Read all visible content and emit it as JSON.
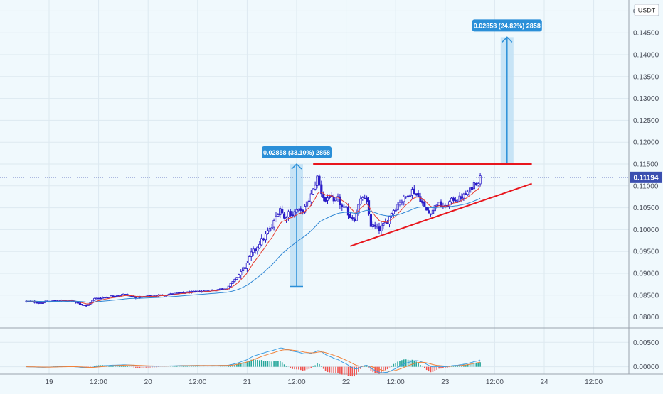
{
  "chart_data": {
    "type": "candlestick",
    "currency": "USDT",
    "current_price": "0.11194",
    "y_ticks": [
      "0.15000",
      "0.14500",
      "0.14000",
      "0.13500",
      "0.13000",
      "0.12500",
      "0.12000",
      "0.11500",
      "0.11000",
      "0.10500",
      "0.10000",
      "0.09500",
      "0.09000",
      "0.08500",
      "0.08000"
    ],
    "ylim": [
      0.0775,
      0.1525
    ],
    "x_ticks": [
      {
        "label": "19",
        "t": 0
      },
      {
        "label": "12:00",
        "t": 12
      },
      {
        "label": "20",
        "t": 24
      },
      {
        "label": "12:00",
        "t": 36
      },
      {
        "label": "21",
        "t": 48
      },
      {
        "label": "12:00",
        "t": 60
      },
      {
        "label": "22",
        "t": 72
      },
      {
        "label": "12:00",
        "t": 84
      },
      {
        "label": "23",
        "t": 96
      },
      {
        "label": "12:00",
        "t": 108
      },
      {
        "label": "24",
        "t": 120
      },
      {
        "label": "12:00",
        "t": 132
      }
    ],
    "price_path": [
      [
        -5.5,
        0.0836
      ],
      [
        -2,
        0.0833
      ],
      [
        2,
        0.0838
      ],
      [
        6,
        0.0836
      ],
      [
        9,
        0.0825
      ],
      [
        11,
        0.0842
      ],
      [
        14,
        0.0846
      ],
      [
        18,
        0.0852
      ],
      [
        21,
        0.0845
      ],
      [
        25,
        0.0848
      ],
      [
        29,
        0.0852
      ],
      [
        33,
        0.0856
      ],
      [
        36,
        0.0858
      ],
      [
        40,
        0.0862
      ],
      [
        43,
        0.0866
      ],
      [
        45,
        0.0885
      ],
      [
        47,
        0.091
      ],
      [
        48,
        0.092
      ],
      [
        49,
        0.0945
      ],
      [
        50,
        0.0955
      ],
      [
        51,
        0.097
      ],
      [
        52,
        0.098
      ],
      [
        53,
        0.0995
      ],
      [
        54,
        0.1005
      ],
      [
        55,
        0.103
      ],
      [
        56,
        0.105
      ],
      [
        57,
        0.1025
      ],
      [
        58,
        0.104
      ],
      [
        59,
        0.1035
      ],
      [
        60,
        0.1045
      ],
      [
        61,
        0.104
      ],
      [
        62,
        0.105
      ],
      [
        63,
        0.1068
      ],
      [
        64,
        0.109
      ],
      [
        65,
        0.112
      ],
      [
        66,
        0.1085
      ],
      [
        67,
        0.1065
      ],
      [
        68,
        0.108
      ],
      [
        69,
        0.106
      ],
      [
        70,
        0.107
      ],
      [
        71,
        0.105
      ],
      [
        72,
        0.1045
      ],
      [
        73,
        0.103
      ],
      [
        74,
        0.1025
      ],
      [
        75,
        0.1055
      ],
      [
        76,
        0.1075
      ],
      [
        77,
        0.106
      ],
      [
        78,
        0.101
      ],
      [
        79,
        0.1005
      ],
      [
        80,
        0.1
      ],
      [
        81,
        0.101
      ],
      [
        82,
        0.102
      ],
      [
        83,
        0.104
      ],
      [
        84,
        0.105
      ],
      [
        85,
        0.1065
      ],
      [
        86,
        0.107
      ],
      [
        87,
        0.108
      ],
      [
        88,
        0.109
      ],
      [
        89,
        0.1082
      ],
      [
        90,
        0.107
      ],
      [
        91,
        0.105
      ],
      [
        92,
        0.1038
      ],
      [
        93,
        0.1045
      ],
      [
        94,
        0.106
      ],
      [
        95,
        0.1055
      ],
      [
        96,
        0.105
      ],
      [
        97,
        0.1062
      ],
      [
        98,
        0.107
      ],
      [
        99,
        0.1068
      ],
      [
        100,
        0.1075
      ],
      [
        101,
        0.108
      ],
      [
        102,
        0.109
      ],
      [
        103,
        0.1105
      ],
      [
        104,
        0.111
      ],
      [
        104.6,
        0.1122
      ]
    ],
    "indicator_x_range": [
      -5.5,
      104.6
    ],
    "resistance_line": {
      "t": [
        64,
        117
      ],
      "price": 0.115
    },
    "support_line": {
      "start": [
        73,
        0.0962
      ],
      "end": [
        117,
        0.1105
      ]
    },
    "measure_1": {
      "t": 60,
      "from": 0.087,
      "to": 0.115,
      "label": "0.02858 (33.10%) 2858"
    },
    "measure_2": {
      "t": 111,
      "from": 0.115,
      "to": 0.144,
      "label": "0.02858 (24.82%) 2858"
    },
    "macd": {
      "ylim": [
        -0.0015,
        0.0078
      ],
      "y_ticks": [
        "0.00500",
        "0.00000"
      ]
    },
    "colors": {
      "background": "#f0f9fd",
      "candle": "#2a1cc7",
      "ma_fast": "#e63b2e",
      "ma_slow": "#2e86d4",
      "pattern_line": "#e8161d",
      "measure_fill": "#bfe0f5",
      "measure_edge": "#2a8fd8",
      "label_bg": "#2a8fd8",
      "macd_line": "#3c9de0",
      "signal_line": "#f0813a",
      "hist_up": "#26a69a",
      "hist_down": "#ef5350"
    }
  }
}
